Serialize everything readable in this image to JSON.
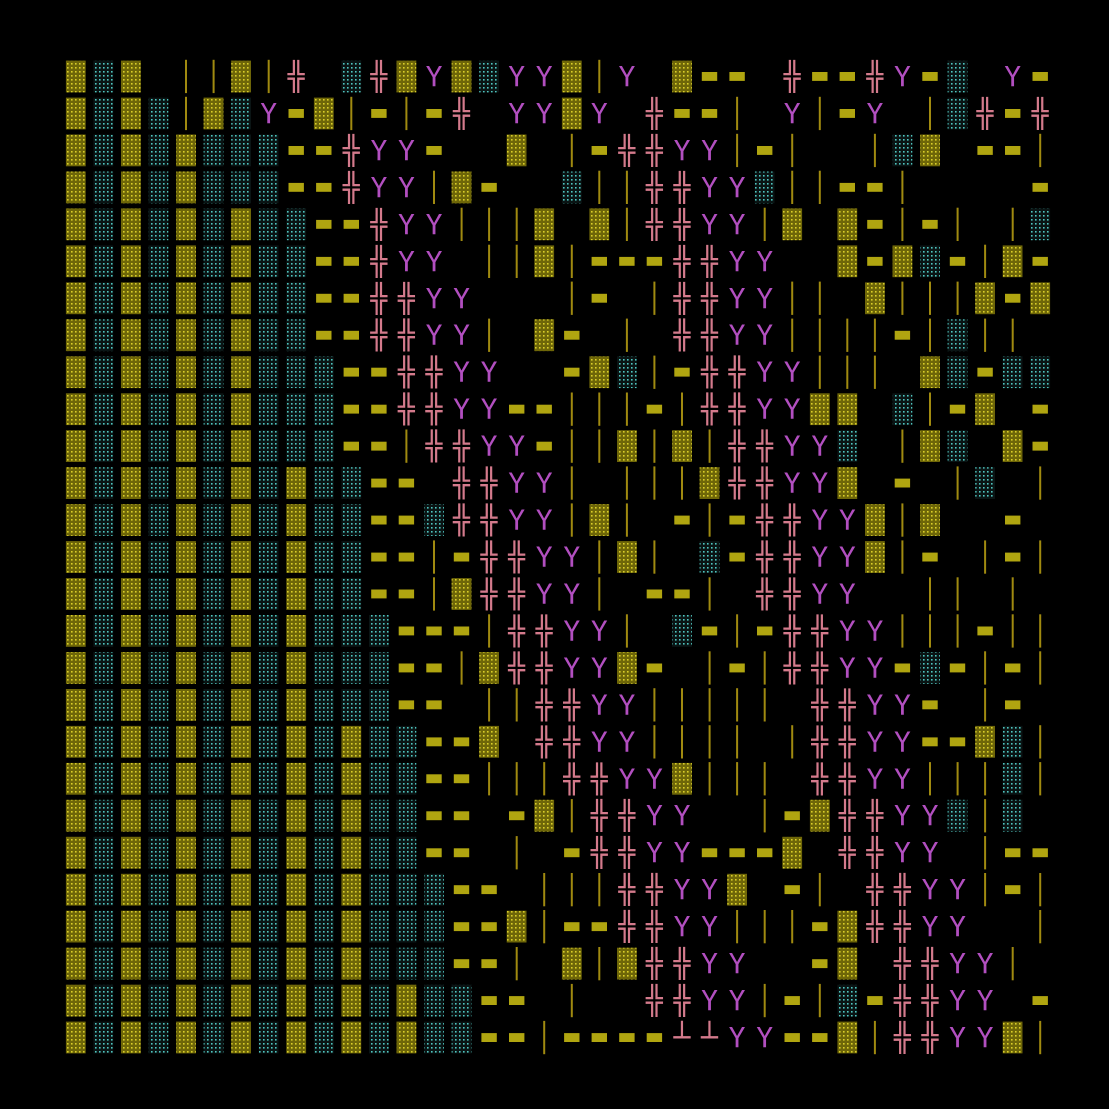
{
  "artwork": {
    "background": "#000000",
    "palette": {
      "y_glyph": "#B24FC0",
      "cross_glyph": "#D47A8C",
      "bar_glyph": "#A08A10",
      "olive_block": "#B0A510",
      "teal_dots": "#4FC6C0",
      "yellow_dots": "#D9CE2A",
      "dash": "#B0A510"
    },
    "glyphs": {
      "y_glyph": "Y",
      "cross_glyph": "╬",
      "bar_glyph": "│",
      "dash": "▬",
      "crossfoot": "┴"
    },
    "grid": {
      "cols": 36,
      "rows": 27
    }
  }
}
